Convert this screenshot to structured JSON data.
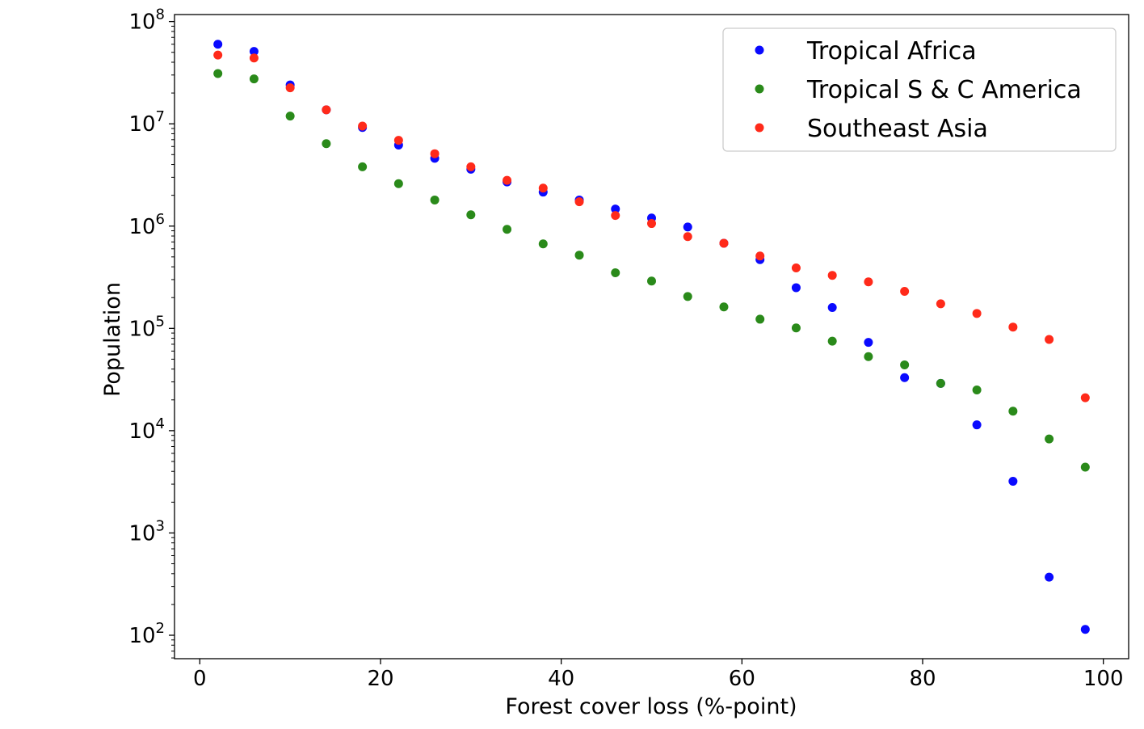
{
  "chart_data": {
    "type": "scatter",
    "title": "",
    "xlabel": "Forest cover loss (%-point)",
    "ylabel": "Population",
    "xlim": [
      -2.8,
      102.8
    ],
    "ylim": [
      59,
      117000000
    ],
    "yscale": "log",
    "grid": false,
    "legend_placement": "top-right",
    "x_ticks": [
      0,
      20,
      40,
      60,
      80,
      100
    ],
    "y_ticks": [
      {
        "exp": 2,
        "base": "10",
        "sup": "2"
      },
      {
        "exp": 3,
        "base": "10",
        "sup": "3"
      },
      {
        "exp": 4,
        "base": "10",
        "sup": "4"
      },
      {
        "exp": 5,
        "base": "10",
        "sup": "5"
      },
      {
        "exp": 6,
        "base": "10",
        "sup": "6"
      },
      {
        "exp": 7,
        "base": "10",
        "sup": "7"
      },
      {
        "exp": 8,
        "base": "10",
        "sup": "8"
      }
    ],
    "x": [
      2,
      6,
      10,
      14,
      18,
      22,
      26,
      30,
      34,
      38,
      42,
      46,
      50,
      54,
      58,
      62,
      66,
      70,
      74,
      78,
      82,
      86,
      90,
      94,
      98
    ],
    "series": [
      {
        "name": "Tropical Africa",
        "color": "#0a0aff",
        "values": [
          60000000,
          51000000,
          24000000,
          13700000,
          9200000,
          6200000,
          4600000,
          3600000,
          2700000,
          2150000,
          1800000,
          1470000,
          1200000,
          980000,
          680000,
          470000,
          250000,
          160000,
          73000,
          33000,
          29000,
          11400,
          3200,
          370,
          114
        ]
      },
      {
        "name": "Tropical S & C America",
        "color": "#2a8a1a",
        "values": [
          31000000,
          27500000,
          11900000,
          6400000,
          3800000,
          2600000,
          1800000,
          1290000,
          930000,
          670000,
          520000,
          350000,
          290000,
          205000,
          162000,
          123000,
          101000,
          75000,
          53000,
          44000,
          29000,
          25000,
          15500,
          8300,
          4400
        ]
      },
      {
        "name": "Southeast Asia",
        "color": "#ff2a1a",
        "values": [
          47000000,
          44000000,
          22500000,
          13700000,
          9500000,
          6900000,
          5100000,
          3800000,
          2800000,
          2350000,
          1730000,
          1270000,
          1060000,
          790000,
          680000,
          510000,
          390000,
          330000,
          285000,
          230000,
          174000,
          140000,
          103000,
          78000,
          21000
        ]
      }
    ]
  }
}
